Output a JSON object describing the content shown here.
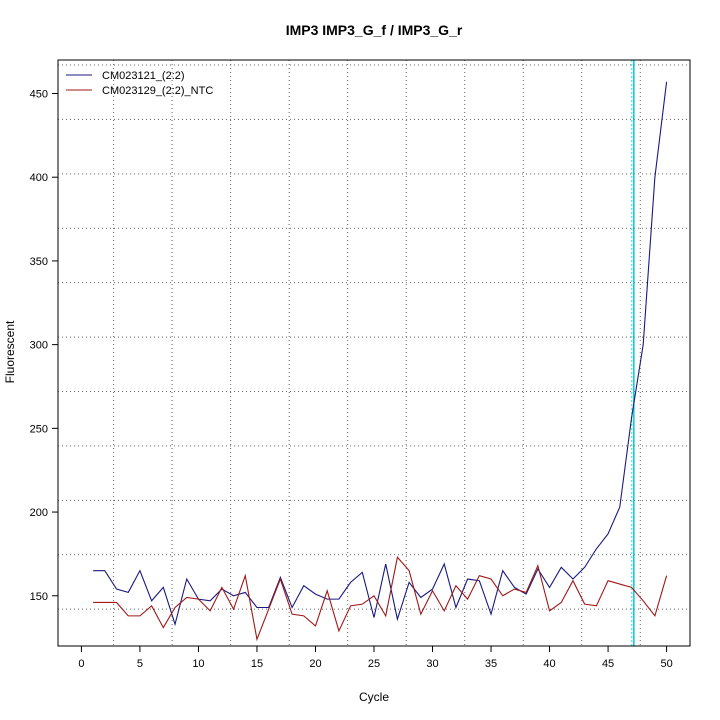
{
  "chart_data": {
    "type": "line",
    "title": "IMP3  IMP3_G_f / IMP3_G_r",
    "xlabel": "Cycle",
    "ylabel": "Fluorescent",
    "xlim": [
      -2,
      52
    ],
    "ylim": [
      120,
      470
    ],
    "x_ticks": [
      0,
      5,
      10,
      15,
      20,
      25,
      30,
      35,
      40,
      45,
      50
    ],
    "x_tick_labels": [
      "0",
      "5",
      "10",
      "15",
      "20",
      "25",
      "30",
      "35",
      "40",
      "45",
      "50"
    ],
    "y_ticks": [
      150,
      200,
      250,
      300,
      350,
      400,
      450
    ],
    "y_tick_labels": [
      "150",
      "200",
      "250",
      "300",
      "350",
      "400",
      "450"
    ],
    "grid": true,
    "legend_position": "top-left",
    "threshold_x": 47.2,
    "colors": {
      "series1": "#1a1a80",
      "series2": "#a01818",
      "threshold": "#00cccc",
      "grid": "#666666"
    },
    "x": [
      1,
      2,
      3,
      4,
      5,
      6,
      7,
      8,
      9,
      10,
      11,
      12,
      13,
      14,
      15,
      16,
      17,
      18,
      19,
      20,
      21,
      22,
      23,
      24,
      25,
      26,
      27,
      28,
      29,
      30,
      31,
      32,
      33,
      34,
      35,
      36,
      37,
      38,
      39,
      40,
      41,
      42,
      43,
      44,
      45,
      46,
      47,
      48,
      49,
      50
    ],
    "series": [
      {
        "name": "CM023121_(2:2)",
        "color": "#1a1a80",
        "values": [
          165,
          165,
          154,
          152,
          165,
          147,
          155,
          133,
          160,
          148,
          147,
          154,
          150,
          152,
          143,
          143,
          161,
          143,
          156,
          151,
          148,
          148,
          158,
          164,
          137,
          169,
          136,
          158,
          149,
          154,
          169,
          143,
          160,
          159,
          139,
          165,
          155,
          151,
          166,
          155,
          167,
          160,
          167,
          178,
          187,
          203,
          256,
          300,
          400,
          457
        ]
      },
      {
        "name": "CM023129_(2:2)_NTC",
        "color": "#a01818",
        "values": [
          146,
          146,
          146,
          138,
          138,
          144,
          131,
          143,
          149,
          148,
          141,
          155,
          142,
          162,
          124,
          142,
          160,
          139,
          138,
          132,
          153,
          129,
          144,
          145,
          150,
          138,
          173,
          165,
          139,
          153,
          141,
          156,
          148,
          162,
          160,
          150,
          154,
          152,
          168,
          141,
          146,
          159,
          145,
          144,
          159,
          157,
          155,
          147,
          138,
          162
        ]
      }
    ]
  }
}
